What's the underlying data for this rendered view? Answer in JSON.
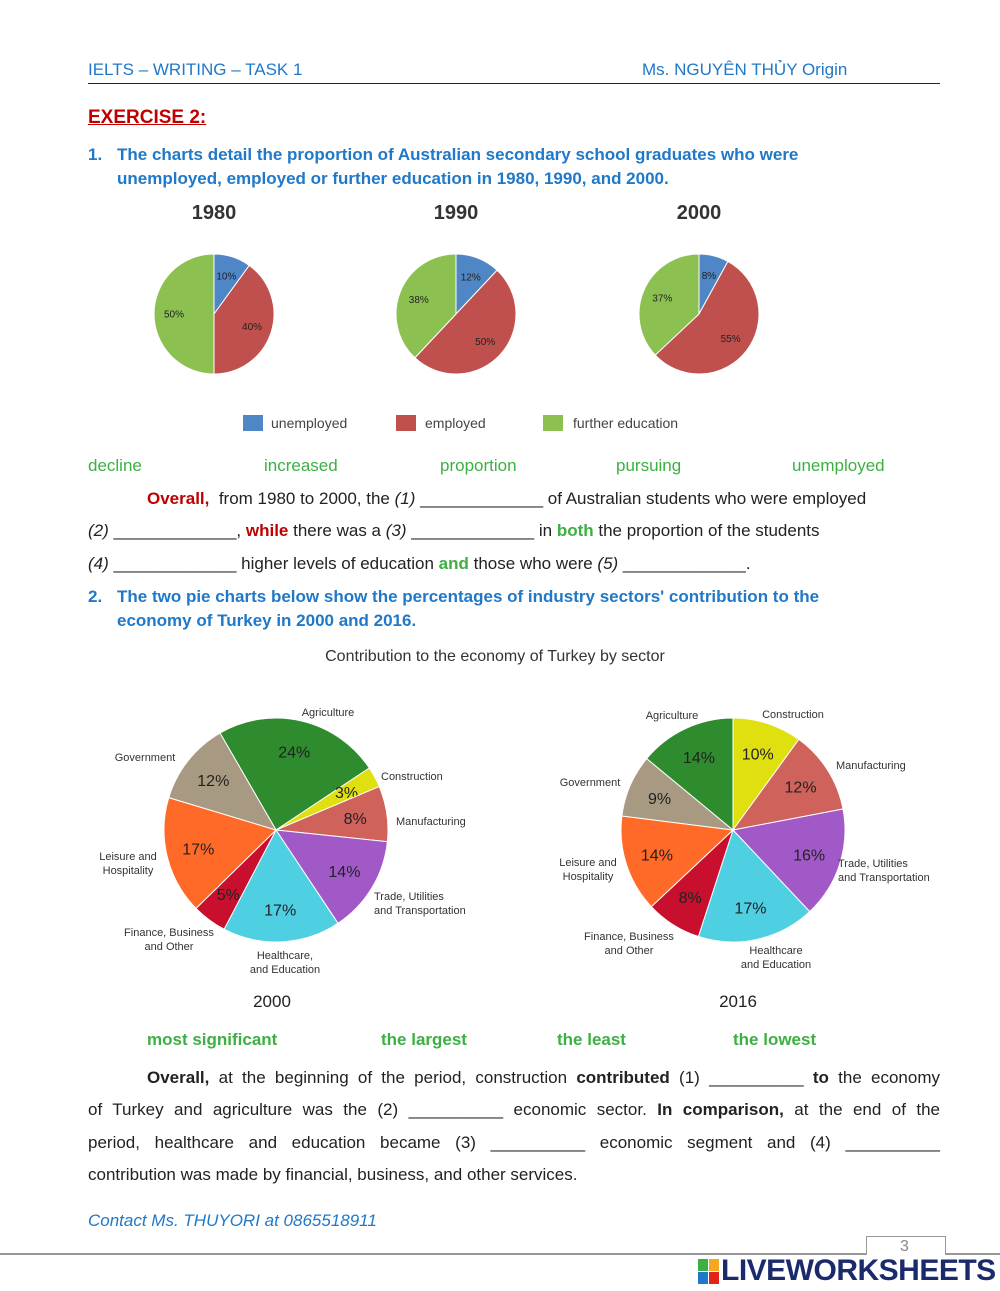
{
  "header": {
    "left": "IELTS – WRITING – TASK 1",
    "right": "Ms. NGUYÊN THỦY Origin"
  },
  "exercise_title": "EXERCISE 2:",
  "q1": {
    "number": "1.",
    "line1": "The charts detail the proportion of Australian secondary school graduates who were",
    "line2": "unemployed, employed or further education in 1980, 1990, and 2000."
  },
  "chart_data": [
    {
      "type": "pie",
      "title": "1980",
      "categories": [
        "unemployed",
        "employed",
        "further education"
      ],
      "values": [
        10,
        40,
        50
      ],
      "labels": [
        "10%",
        "40%",
        "50%"
      ],
      "colors": [
        "#4f86c6",
        "#c0504d",
        "#8cc152"
      ]
    },
    {
      "type": "pie",
      "title": "1990",
      "categories": [
        "unemployed",
        "employed",
        "further education"
      ],
      "values": [
        12,
        50,
        38
      ],
      "labels": [
        "12%",
        "50%",
        "38%"
      ],
      "colors": [
        "#4f86c6",
        "#c0504d",
        "#8cc152"
      ]
    },
    {
      "type": "pie",
      "title": "2000",
      "categories": [
        "unemployed",
        "employed",
        "further education"
      ],
      "values": [
        8,
        55,
        37
      ],
      "labels": [
        "8%",
        "55%",
        "37%"
      ],
      "colors": [
        "#4f86c6",
        "#c0504d",
        "#8cc152"
      ],
      "legend": "bottom"
    },
    {
      "type": "pie",
      "title": "Contribution to the economy of Turkey by sector",
      "xlabel": "2000",
      "categories": [
        "Agriculture",
        "Construction",
        "Manufacturing",
        "Trade, Utilities and Transportation",
        "Healthcare, and Education",
        "Finance, Business and Other",
        "Leisure and Hospitality",
        "Government"
      ],
      "category_lines": [
        [
          "Agriculture"
        ],
        [
          "Construction"
        ],
        [
          "Manufacturing"
        ],
        [
          "Trade, Utilities",
          "and Transportation"
        ],
        [
          "Healthcare,",
          "and Education"
        ],
        [
          "Finance, Business",
          "and Other"
        ],
        [
          "Leisure and",
          "Hospitality"
        ],
        [
          "Government"
        ]
      ],
      "values": [
        24,
        3,
        8,
        14,
        17,
        5,
        17,
        12
      ],
      "labels": [
        "24%",
        "3%",
        "8%",
        "14%",
        "17%",
        "5%",
        "17%",
        "12%"
      ],
      "colors": [
        "#2e8b2e",
        "#e0e010",
        "#cf625a",
        "#a259c8",
        "#4fcfe2",
        "#c8102e",
        "#ff6a28",
        "#a89a82"
      ]
    },
    {
      "type": "pie",
      "xlabel": "2016",
      "categories": [
        "Construction",
        "Manufacturing",
        "Trade, Utilities and Transportation",
        "Healthcare and Education",
        "Finance, Business and Other",
        "Leisure and Hospitality",
        "Government",
        "Agriculture"
      ],
      "category_lines": [
        [
          "Construction"
        ],
        [
          "Manufacturing"
        ],
        [
          "Trade, Utilities",
          "and Transportation"
        ],
        [
          "Healthcare",
          "and Education"
        ],
        [
          "Finance, Business",
          "and Other"
        ],
        [
          "Leisure and",
          "Hospitality"
        ],
        [
          "Government"
        ],
        [
          "Agriculture"
        ]
      ],
      "values": [
        10,
        12,
        16,
        17,
        8,
        14,
        9,
        14
      ],
      "labels": [
        "10%",
        "12%",
        "16%",
        "17%",
        "8%",
        "14%",
        "9%",
        "14%"
      ],
      "colors": [
        "#e0e010",
        "#cf625a",
        "#a259c8",
        "#4fcfe2",
        "#c8102e",
        "#ff6a28",
        "#a89a82",
        "#2e8b2e"
      ]
    }
  ],
  "word_bank_1": [
    "decline",
    "increased",
    "proportion",
    "pursuing",
    "unemployed"
  ],
  "para1": [
    [
      [
        "red",
        "Overall,"
      ],
      [
        "",
        "  from 1980 to 2000, the "
      ],
      [
        "it",
        "(1)"
      ],
      [
        "",
        " _____________ of Australian students who were employed"
      ]
    ],
    [
      [
        "it",
        "(2)"
      ],
      [
        "",
        " _____________, "
      ],
      [
        "red",
        "while"
      ],
      [
        "",
        " there was a "
      ],
      [
        "it",
        "(3)"
      ],
      [
        "",
        " _____________ in "
      ],
      [
        "grn",
        "both"
      ],
      [
        "",
        " the proportion of the students"
      ]
    ],
    [
      [
        "it",
        "(4)"
      ],
      [
        "",
        " _____________ higher levels of education "
      ],
      [
        "grn",
        "and"
      ],
      [
        "",
        " those who were "
      ],
      [
        "it",
        "(5)"
      ],
      [
        "",
        " _____________."
      ]
    ]
  ],
  "q2": {
    "number": "2.",
    "line1": "The two pie charts below show the percentages of industry sectors' contribution to the",
    "line2": "economy of Turkey in 2000 and 2016."
  },
  "word_bank_2": [
    "most significant",
    "the largest",
    "the least",
    "the lowest"
  ],
  "para2": [
    [
      [
        "bold",
        "Overall,"
      ],
      [
        "",
        " at the beginning of the period, construction "
      ],
      [
        "bold",
        "contributed"
      ],
      [
        "",
        " (1) __________ "
      ],
      [
        "bold",
        "to"
      ],
      [
        "",
        " the economy"
      ]
    ],
    [
      [
        "",
        "of Turkey and agriculture was the (2) __________ economic sector. "
      ],
      [
        "bold",
        "In comparison,"
      ],
      [
        "",
        " at the end of the"
      ]
    ],
    [
      [
        "",
        "period, healthcare and education became (3) __________ economic segment and (4) __________"
      ]
    ],
    [
      [
        "",
        "contribution was made by financial, business, and other services."
      ]
    ]
  ],
  "footer": {
    "contact": "Contact Ms. THUYORI at 0865518911",
    "page_number": "3",
    "logo": "LIVEWORKSHEETS"
  }
}
